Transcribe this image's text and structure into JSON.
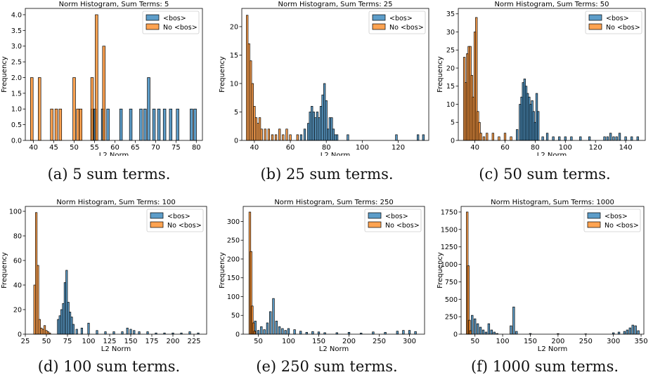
{
  "colors": {
    "bos": "#1f77b4",
    "no_bos": "#ff7f0e",
    "edge": "#000000"
  },
  "legend_labels": [
    "<bos>",
    "No <bos>"
  ],
  "xlabel": "L2 Norm",
  "ylabel": "Frequency",
  "captions": [
    "(a) 5 sum terms.",
    "(b) 25 sum terms.",
    "(c) 50 sum terms.",
    "(d) 100 sum terms.",
    "(e) 250 sum terms.",
    "(f) 1000 sum terms."
  ],
  "chart_data": [
    {
      "type": "bar",
      "title": "Norm Histogram, Sum Terms: 5",
      "xlabel": "L2 Norm",
      "ylabel": "Frequency",
      "xlim": [
        38,
        81.5
      ],
      "ylim": [
        0,
        4.2
      ],
      "xticks": [
        40,
        45,
        50,
        55,
        60,
        65,
        70,
        75,
        80
      ],
      "yticks": [
        0.0,
        0.5,
        1.0,
        1.5,
        2.0,
        2.5,
        3.0,
        3.5,
        4.0
      ],
      "ytick_labels": [
        "0.0",
        "0.5",
        "1.0",
        "1.5",
        "2.0",
        "2.5",
        "3.0",
        "3.5",
        "4.0"
      ],
      "bin_width": 0.65,
      "legend": "top-right",
      "series": [
        {
          "name": "<bos>",
          "x": [
            54.5,
            55.2,
            57.0,
            58.3,
            61.5,
            63.9,
            66.4,
            67.4,
            68.3,
            69.6,
            70.8,
            72.2,
            73.7,
            75.4,
            78.8,
            79.7
          ],
          "values": [
            1,
            1,
            1,
            1,
            1,
            1,
            1,
            1,
            2,
            1,
            1,
            1,
            1,
            1,
            1,
            1
          ]
        },
        {
          "name": "No <bos>",
          "x": [
            39.6,
            41.5,
            44.5,
            45.6,
            46.6,
            50.0,
            50.9,
            51.6,
            54.4,
            55.5,
            57.3
          ],
          "values": [
            2,
            2,
            1,
            1,
            1,
            2,
            1,
            1,
            2,
            4,
            3
          ]
        }
      ]
    },
    {
      "type": "bar",
      "title": "Norm Histogram, Sum Terms: 25",
      "xlabel": "L2 Norm",
      "ylabel": "Frequency",
      "xlim": [
        33,
        137
      ],
      "ylim": [
        0,
        23.2
      ],
      "xticks": [
        40,
        60,
        80,
        100,
        120
      ],
      "yticks": [
        0,
        5,
        10,
        15,
        20
      ],
      "ytick_labels": [
        "0",
        "5",
        "10",
        "15",
        "20"
      ],
      "bin_width": 1.0,
      "legend": "top-right",
      "series": [
        {
          "name": "<bos>",
          "x": [
            66,
            68,
            70,
            71,
            72,
            73,
            74,
            75,
            76,
            77,
            78,
            79,
            80,
            81,
            82,
            83,
            84,
            85,
            86,
            92,
            119,
            131,
            134
          ],
          "values": [
            1,
            2,
            3,
            5,
            6,
            5,
            4,
            5,
            4,
            6,
            8,
            10,
            7,
            2,
            4,
            4,
            2,
            1,
            1,
            1,
            1,
            1,
            1
          ]
        },
        {
          "name": "No <bos>",
          "x": [
            36,
            37,
            38,
            39,
            40,
            41,
            42,
            43,
            44,
            46,
            48,
            50,
            52,
            54,
            56,
            58,
            60,
            64
          ],
          "values": [
            22,
            17,
            14,
            10,
            6,
            4,
            3,
            4,
            2,
            2,
            2,
            1,
            1,
            2,
            1,
            2,
            1,
            1
          ]
        }
      ]
    },
    {
      "type": "bar",
      "title": "Norm Histogram, Sum Terms: 50",
      "xlabel": "L2 Norm",
      "ylabel": "Frequency",
      "xlim": [
        29,
        153
      ],
      "ylim": [
        0,
        36.5
      ],
      "xticks": [
        40,
        60,
        80,
        100,
        120,
        140
      ],
      "yticks": [
        0,
        5,
        10,
        15,
        20,
        25,
        30,
        35
      ],
      "ytick_labels": [
        "0",
        "5",
        "10",
        "15",
        "20",
        "25",
        "30",
        "35"
      ],
      "bin_width": 1.2,
      "legend": "top-right",
      "series": [
        {
          "name": "<bos>",
          "x": [
            68,
            70,
            71,
            72,
            73,
            74,
            75,
            76,
            77,
            78,
            79,
            80,
            81,
            82,
            85,
            88,
            92,
            96,
            100,
            104,
            110,
            116,
            126,
            128,
            130,
            132,
            134,
            136,
            140,
            144,
            148
          ],
          "values": [
            3,
            10,
            12,
            16,
            17,
            15,
            13,
            12,
            10,
            11,
            8,
            5,
            13,
            8,
            1,
            2,
            1,
            1,
            1,
            1,
            1,
            1,
            1,
            1,
            2,
            1,
            1,
            2,
            1,
            1,
            1
          ]
        },
        {
          "name": "No <bos>",
          "x": [
            33,
            34,
            35,
            36,
            37,
            38,
            39,
            40,
            41,
            42,
            43,
            44,
            46,
            48,
            52,
            56,
            60,
            64
          ],
          "values": [
            23,
            16,
            24,
            26,
            26,
            18,
            12,
            30,
            34,
            8,
            5,
            2,
            1,
            2,
            2,
            1,
            2,
            1
          ]
        }
      ]
    },
    {
      "type": "bar",
      "title": "Norm Histogram, Sum Terms: 100",
      "xlabel": "L2 Norm",
      "ylabel": "Frequency",
      "xlim": [
        25,
        240
      ],
      "ylim": [
        0,
        104
      ],
      "xticks": [
        25,
        50,
        75,
        100,
        125,
        150,
        175,
        200,
        225
      ],
      "yticks": [
        0,
        20,
        40,
        60,
        80,
        100
      ],
      "ytick_labels": [
        "0",
        "20",
        "40",
        "60",
        "80",
        "100"
      ],
      "bin_width": 2.0,
      "legend": "top-right",
      "series": [
        {
          "name": "<bos>",
          "x": [
            64,
            66,
            68,
            70,
            72,
            74,
            76,
            78,
            80,
            82,
            86,
            92,
            100,
            110,
            120,
            130,
            140,
            146,
            150,
            154,
            160,
            170,
            180,
            190,
            200,
            210,
            220,
            230
          ],
          "values": [
            12,
            15,
            20,
            25,
            42,
            52,
            26,
            18,
            14,
            8,
            4,
            5,
            9,
            3,
            2,
            2,
            2,
            5,
            4,
            3,
            2,
            2,
            1,
            1,
            1,
            1,
            2,
            1
          ]
        },
        {
          "name": "No <bos>",
          "x": [
            36,
            38,
            40,
            42,
            44,
            46,
            48,
            50,
            52,
            54
          ],
          "values": [
            40,
            99,
            56,
            12,
            5,
            4,
            7,
            3,
            2,
            1
          ]
        }
      ]
    },
    {
      "type": "bar",
      "title": "Norm Histogram, Sum Terms: 250",
      "xlabel": "L2 Norm",
      "ylabel": "Frequency",
      "xlim": [
        25,
        325
      ],
      "ylim": [
        0,
        340
      ],
      "xticks": [
        50,
        100,
        150,
        200,
        250,
        300
      ],
      "yticks": [
        0,
        50,
        100,
        150,
        200,
        250,
        300
      ],
      "ytick_labels": [
        "0",
        "50",
        "100",
        "150",
        "200",
        "250",
        "300"
      ],
      "bin_width": 3.0,
      "legend": "top-right",
      "series": [
        {
          "name": "<bos>",
          "x": [
            45,
            50,
            55,
            60,
            65,
            70,
            75,
            80,
            85,
            90,
            95,
            100,
            110,
            120,
            130,
            140,
            150,
            160,
            180,
            200,
            220,
            240,
            260,
            280,
            290,
            300,
            310
          ],
          "values": [
            35,
            10,
            20,
            12,
            30,
            60,
            95,
            35,
            20,
            15,
            10,
            15,
            12,
            8,
            5,
            7,
            6,
            4,
            4,
            5,
            3,
            6,
            5,
            8,
            10,
            10,
            7
          ]
        },
        {
          "name": "No <bos>",
          "x": [
            36,
            38,
            40,
            42,
            44
          ],
          "values": [
            325,
            220,
            75,
            30,
            8
          ]
        }
      ]
    },
    {
      "type": "bar",
      "title": "Norm Histogram, Sum Terms: 1000",
      "xlabel": "L2 Norm",
      "ylabel": "Frequency",
      "xlim": [
        25,
        355
      ],
      "ylim": [
        0,
        1830
      ],
      "xticks": [
        50,
        100,
        150,
        200,
        250,
        300,
        350
      ],
      "yticks": [
        0,
        250,
        500,
        750,
        1000,
        1250,
        1500,
        1750
      ],
      "ytick_labels": [
        "0",
        "250",
        "500",
        "750",
        "1000",
        "1250",
        "1500",
        "1750"
      ],
      "bin_width": 3.3,
      "legend": "top-right",
      "series": [
        {
          "name": "<bos>",
          "x": [
            45,
            50,
            55,
            60,
            65,
            70,
            75,
            80,
            85,
            90,
            115,
            120,
            125,
            150,
            200,
            250,
            300,
            310,
            320,
            325,
            330,
            335,
            340,
            345
          ],
          "values": [
            270,
            220,
            150,
            100,
            60,
            30,
            150,
            60,
            30,
            10,
            120,
            390,
            40,
            10,
            8,
            5,
            20,
            30,
            40,
            60,
            90,
            130,
            120,
            50
          ]
        },
        {
          "name": "No <bos>",
          "x": [
            36,
            38,
            40,
            42
          ],
          "values": [
            1750,
            980,
            200,
            50
          ]
        }
      ]
    }
  ]
}
